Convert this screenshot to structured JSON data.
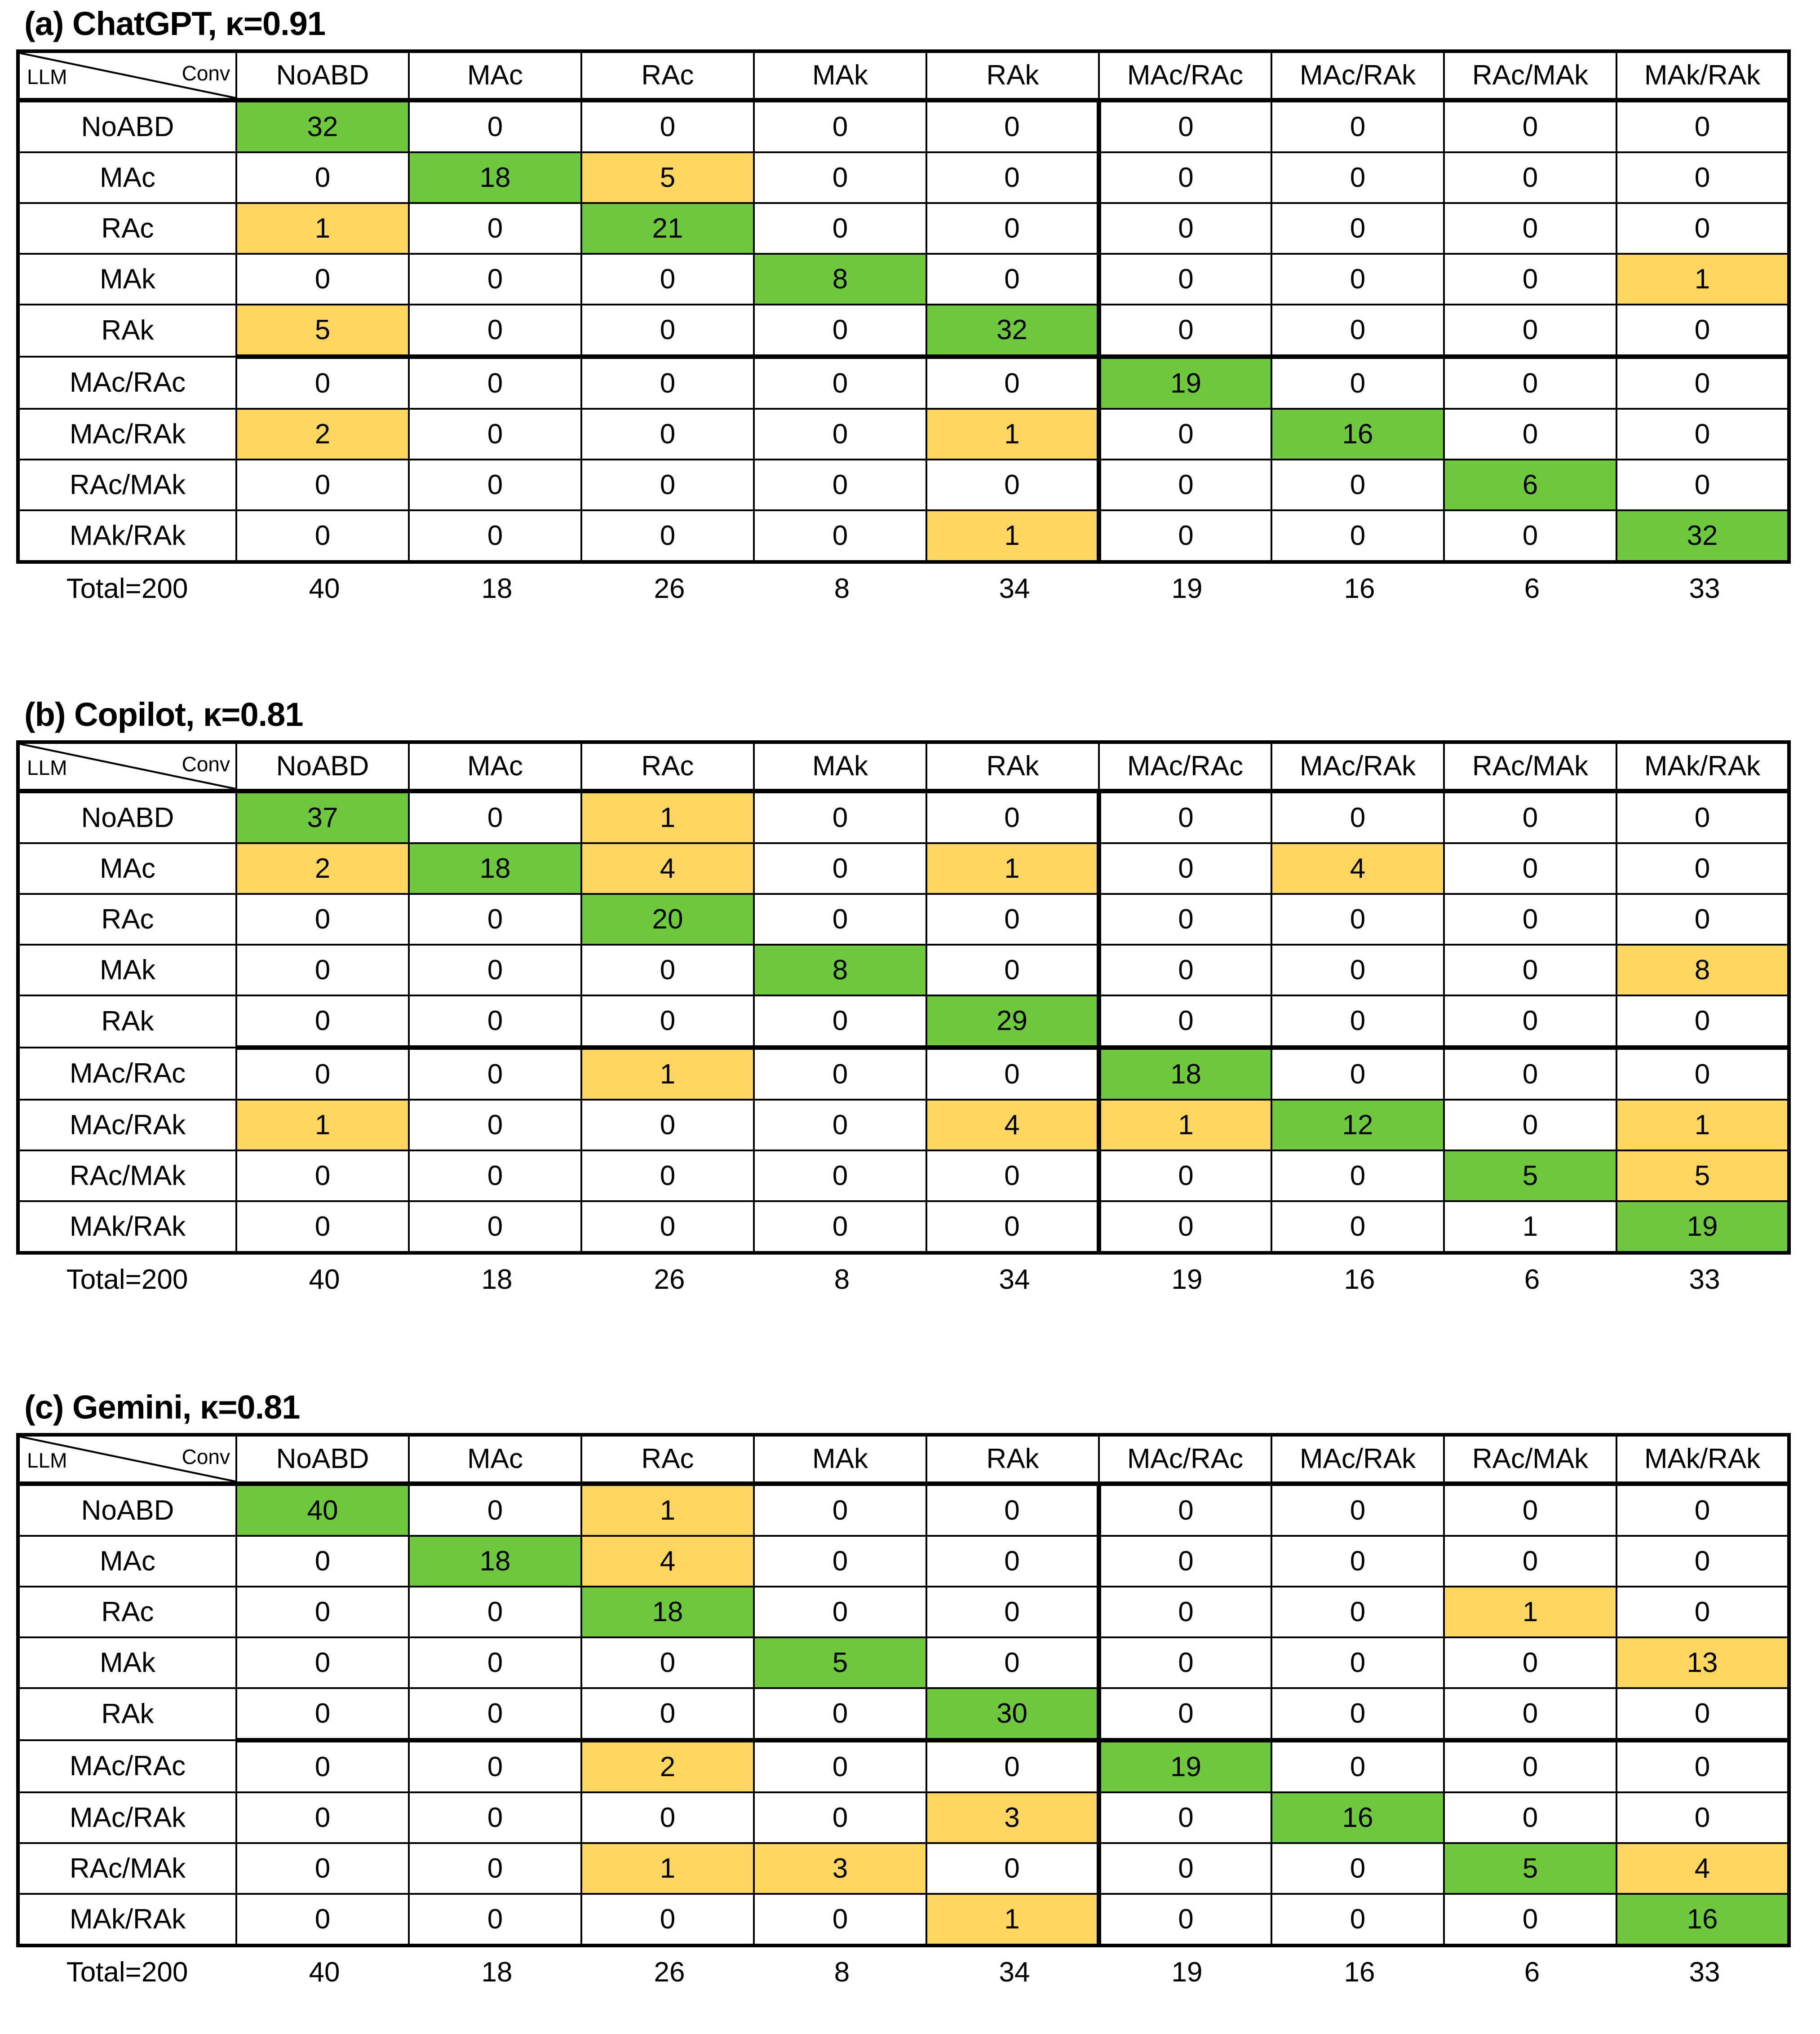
{
  "colors": {
    "match_green": "#6ec83e",
    "mismatch_yellow": "#ffd760",
    "grid_black": "#000000",
    "page_background": "#ffffff"
  },
  "corner": {
    "row_axis_label": "LLM",
    "col_axis_label": "Conv"
  },
  "chart_data": [
    {
      "type": "table",
      "title": "(a) ChatGPT, κ=0.91",
      "model": "ChatGPT",
      "kappa": "0.91",
      "columns": [
        "NoABD",
        "MAc",
        "RAc",
        "MAk",
        "RAk",
        "MAc/RAc",
        "MAc/RAk",
        "RAc/MAk",
        "MAk/RAk"
      ],
      "rows": [
        {
          "label": "NoABD",
          "values": [
            32,
            0,
            0,
            0,
            0,
            0,
            0,
            0,
            0
          ],
          "highlight": [
            "g",
            "",
            "",
            "",
            "",
            "",
            "",
            "",
            ""
          ]
        },
        {
          "label": "MAc",
          "values": [
            0,
            18,
            5,
            0,
            0,
            0,
            0,
            0,
            0
          ],
          "highlight": [
            "",
            "g",
            "y",
            "",
            "",
            "",
            "",
            "",
            ""
          ]
        },
        {
          "label": "RAc",
          "values": [
            1,
            0,
            21,
            0,
            0,
            0,
            0,
            0,
            0
          ],
          "highlight": [
            "y",
            "",
            "g",
            "",
            "",
            "",
            "",
            "",
            ""
          ]
        },
        {
          "label": "MAk",
          "values": [
            0,
            0,
            0,
            8,
            0,
            0,
            0,
            0,
            1
          ],
          "highlight": [
            "",
            "",
            "",
            "g",
            "",
            "",
            "",
            "",
            "y"
          ]
        },
        {
          "label": "RAk",
          "values": [
            5,
            0,
            0,
            0,
            32,
            0,
            0,
            0,
            0
          ],
          "highlight": [
            "y",
            "",
            "",
            "",
            "g",
            "",
            "",
            "",
            ""
          ]
        },
        {
          "label": "MAc/RAc",
          "values": [
            0,
            0,
            0,
            0,
            0,
            19,
            0,
            0,
            0
          ],
          "highlight": [
            "",
            "",
            "",
            "",
            "",
            "g",
            "",
            "",
            ""
          ]
        },
        {
          "label": "MAc/RAk",
          "values": [
            2,
            0,
            0,
            0,
            1,
            0,
            16,
            0,
            0
          ],
          "highlight": [
            "y",
            "",
            "",
            "",
            "y",
            "",
            "g",
            "",
            ""
          ]
        },
        {
          "label": "RAc/MAk",
          "values": [
            0,
            0,
            0,
            0,
            0,
            0,
            0,
            6,
            0
          ],
          "highlight": [
            "",
            "",
            "",
            "",
            "",
            "",
            "",
            "g",
            ""
          ]
        },
        {
          "label": "MAk/RAk",
          "values": [
            0,
            0,
            0,
            0,
            1,
            0,
            0,
            0,
            32
          ],
          "highlight": [
            "",
            "",
            "",
            "",
            "y",
            "",
            "",
            "",
            "g"
          ]
        }
      ],
      "total_label": "Total=200",
      "totals": [
        40,
        18,
        26,
        8,
        34,
        19,
        16,
        6,
        33
      ]
    },
    {
      "type": "table",
      "title": "(b) Copilot, κ=0.81",
      "model": "Copilot",
      "kappa": "0.81",
      "columns": [
        "NoABD",
        "MAc",
        "RAc",
        "MAk",
        "RAk",
        "MAc/RAc",
        "MAc/RAk",
        "RAc/MAk",
        "MAk/RAk"
      ],
      "rows": [
        {
          "label": "NoABD",
          "values": [
            37,
            0,
            1,
            0,
            0,
            0,
            0,
            0,
            0
          ],
          "highlight": [
            "g",
            "",
            "y",
            "",
            "",
            "",
            "",
            "",
            ""
          ]
        },
        {
          "label": "MAc",
          "values": [
            2,
            18,
            4,
            0,
            1,
            0,
            4,
            0,
            0
          ],
          "highlight": [
            "y",
            "g",
            "y",
            "",
            "y",
            "",
            "y",
            "",
            ""
          ]
        },
        {
          "label": "RAc",
          "values": [
            0,
            0,
            20,
            0,
            0,
            0,
            0,
            0,
            0
          ],
          "highlight": [
            "",
            "",
            "g",
            "",
            "",
            "",
            "",
            "",
            ""
          ]
        },
        {
          "label": "MAk",
          "values": [
            0,
            0,
            0,
            8,
            0,
            0,
            0,
            0,
            8
          ],
          "highlight": [
            "",
            "",
            "",
            "g",
            "",
            "",
            "",
            "",
            "y"
          ]
        },
        {
          "label": "RAk",
          "values": [
            0,
            0,
            0,
            0,
            29,
            0,
            0,
            0,
            0
          ],
          "highlight": [
            "",
            "",
            "",
            "",
            "g",
            "",
            "",
            "",
            ""
          ]
        },
        {
          "label": "MAc/RAc",
          "values": [
            0,
            0,
            1,
            0,
            0,
            18,
            0,
            0,
            0
          ],
          "highlight": [
            "",
            "",
            "y",
            "",
            "",
            "g",
            "",
            "",
            ""
          ]
        },
        {
          "label": "MAc/RAk",
          "values": [
            1,
            0,
            0,
            0,
            4,
            1,
            12,
            0,
            1
          ],
          "highlight": [
            "y",
            "",
            "",
            "",
            "y",
            "y",
            "g",
            "",
            "y"
          ]
        },
        {
          "label": "RAc/MAk",
          "values": [
            0,
            0,
            0,
            0,
            0,
            0,
            0,
            5,
            5
          ],
          "highlight": [
            "",
            "",
            "",
            "",
            "",
            "",
            "",
            "g",
            "y"
          ]
        },
        {
          "label": "MAk/RAk",
          "values": [
            0,
            0,
            0,
            0,
            0,
            0,
            0,
            1,
            19
          ],
          "highlight": [
            "",
            "",
            "",
            "",
            "",
            "",
            "",
            "",
            "g"
          ]
        }
      ],
      "total_label": "Total=200",
      "totals": [
        40,
        18,
        26,
        8,
        34,
        19,
        16,
        6,
        33
      ]
    },
    {
      "type": "table",
      "title": "(c) Gemini, κ=0.81",
      "model": "Gemini",
      "kappa": "0.81",
      "columns": [
        "NoABD",
        "MAc",
        "RAc",
        "MAk",
        "RAk",
        "MAc/RAc",
        "MAc/RAk",
        "RAc/MAk",
        "MAk/RAk"
      ],
      "rows": [
        {
          "label": "NoABD",
          "values": [
            40,
            0,
            1,
            0,
            0,
            0,
            0,
            0,
            0
          ],
          "highlight": [
            "g",
            "",
            "y",
            "",
            "",
            "",
            "",
            "",
            ""
          ]
        },
        {
          "label": "MAc",
          "values": [
            0,
            18,
            4,
            0,
            0,
            0,
            0,
            0,
            0
          ],
          "highlight": [
            "",
            "g",
            "y",
            "",
            "",
            "",
            "",
            "",
            ""
          ]
        },
        {
          "label": "RAc",
          "values": [
            0,
            0,
            18,
            0,
            0,
            0,
            0,
            1,
            0
          ],
          "highlight": [
            "",
            "",
            "g",
            "",
            "",
            "",
            "",
            "y",
            ""
          ]
        },
        {
          "label": "MAk",
          "values": [
            0,
            0,
            0,
            5,
            0,
            0,
            0,
            0,
            13
          ],
          "highlight": [
            "",
            "",
            "",
            "g",
            "",
            "",
            "",
            "",
            "y"
          ]
        },
        {
          "label": "RAk",
          "values": [
            0,
            0,
            0,
            0,
            30,
            0,
            0,
            0,
            0
          ],
          "highlight": [
            "",
            "",
            "",
            "",
            "g",
            "",
            "",
            "",
            ""
          ]
        },
        {
          "label": "MAc/RAc",
          "values": [
            0,
            0,
            2,
            0,
            0,
            19,
            0,
            0,
            0
          ],
          "highlight": [
            "",
            "",
            "y",
            "",
            "",
            "g",
            "",
            "",
            ""
          ]
        },
        {
          "label": "MAc/RAk",
          "values": [
            0,
            0,
            0,
            0,
            3,
            0,
            16,
            0,
            0
          ],
          "highlight": [
            "",
            "",
            "",
            "",
            "y",
            "",
            "g",
            "",
            ""
          ]
        },
        {
          "label": "RAc/MAk",
          "values": [
            0,
            0,
            1,
            3,
            0,
            0,
            0,
            5,
            4
          ],
          "highlight": [
            "",
            "",
            "y",
            "y",
            "",
            "",
            "",
            "g",
            "y"
          ]
        },
        {
          "label": "MAk/RAk",
          "values": [
            0,
            0,
            0,
            0,
            1,
            0,
            0,
            0,
            16
          ],
          "highlight": [
            "",
            "",
            "",
            "",
            "y",
            "",
            "",
            "",
            "g"
          ]
        }
      ],
      "total_label": "Total=200",
      "totals": [
        40,
        18,
        26,
        8,
        34,
        19,
        16,
        6,
        33
      ]
    }
  ]
}
